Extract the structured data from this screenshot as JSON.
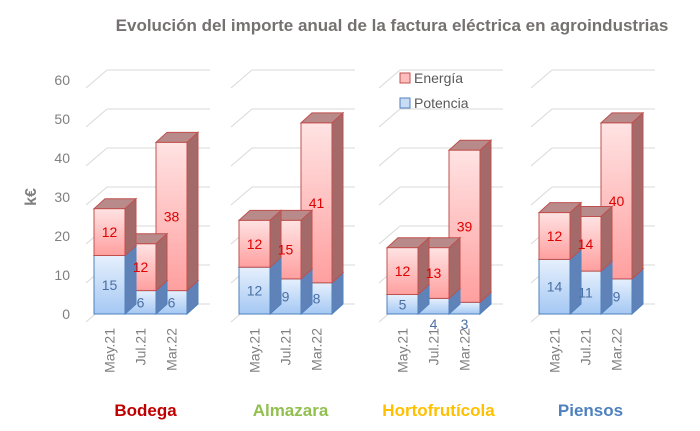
{
  "chart_data": {
    "type": "bar",
    "subtype": "stacked-3d-grouped",
    "title": "Evolución del importe anual de la factura eléctrica en agroindustrias",
    "xlabel": "",
    "ylabel": "k€",
    "ylim": [
      0,
      60
    ],
    "yticks": [
      0,
      10,
      20,
      30,
      40,
      50,
      60
    ],
    "grid": true,
    "legend_position": "top-center-right",
    "categories": [
      "May.21",
      "Jul.21",
      "Mar.22"
    ],
    "series_names": [
      "Energía",
      "Potencia"
    ],
    "series_colors": {
      "Energía": "#ff9999",
      "Potencia": "#9dc3f0"
    },
    "groups": [
      {
        "name": "Bodega",
        "color": "#c00000",
        "Potencia": [
          15,
          6,
          6
        ],
        "Energía": [
          12,
          12,
          38
        ]
      },
      {
        "name": "Almazara",
        "color": "#92c050",
        "Potencia": [
          12,
          9,
          8
        ],
        "Energía": [
          12,
          15,
          41
        ]
      },
      {
        "name": "Hortofrutícola",
        "color": "#ffc000",
        "Potencia": [
          5,
          4,
          3
        ],
        "Energía": [
          12,
          13,
          39
        ]
      },
      {
        "name": "Piensos",
        "color": "#4f81bd",
        "Potencia": [
          14,
          11,
          9
        ],
        "Energía": [
          12,
          14,
          40
        ]
      }
    ]
  }
}
